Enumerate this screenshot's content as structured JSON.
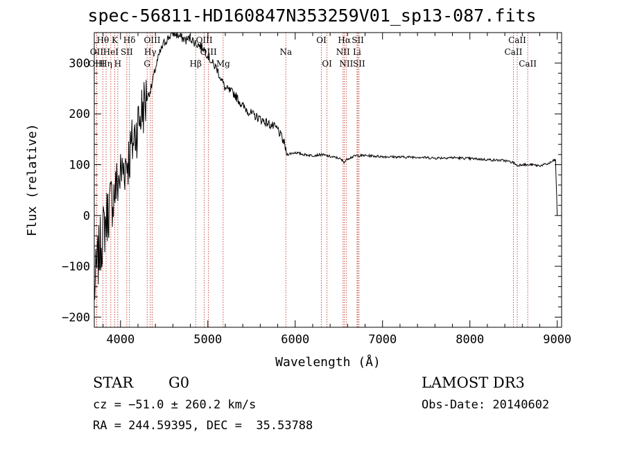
{
  "chart_data": {
    "type": "line",
    "title": "spec-56811-HD160847N353259V01_sp13-087.fits",
    "xlabel": "Wavelength (Å)",
    "ylabel": "Flux (relative)",
    "xlim": [
      3700,
      9050
    ],
    "ylim": [
      -220,
      360
    ],
    "xticks": [
      4000,
      5000,
      6000,
      7000,
      8000,
      9000
    ],
    "xtick_labels": [
      "4000",
      "5000",
      "6000",
      "7000",
      "8000",
      "9000"
    ],
    "yticks": [
      -200,
      -100,
      0,
      100,
      200,
      300
    ],
    "ytick_labels": [
      "−200",
      "−100",
      "0",
      "100",
      "200",
      "300"
    ],
    "series": [
      {
        "name": "spectrum",
        "x": [
          3700,
          3740,
          3780,
          3820,
          3860,
          3900,
          3950,
          4000,
          4050,
          4100,
          4150,
          4200,
          4250,
          4300,
          4350,
          4400,
          4450,
          4500,
          4550,
          4600,
          4650,
          4700,
          4750,
          4800,
          4850,
          4900,
          4950,
          5000,
          5050,
          5100,
          5150,
          5200,
          5300,
          5400,
          5500,
          5600,
          5700,
          5800,
          5880,
          5900,
          5950,
          6000,
          6100,
          6200,
          6300,
          6400,
          6500,
          6563,
          6600,
          6700,
          6800,
          6900,
          7000,
          7200,
          7400,
          7600,
          7800,
          8000,
          8200,
          8400,
          8500,
          8542,
          8600,
          8662,
          8700,
          8800,
          8900,
          8980,
          9000
        ],
        "y": [
          -150,
          -90,
          -50,
          -20,
          10,
          30,
          55,
          80,
          100,
          115,
          150,
          180,
          210,
          230,
          250,
          290,
          320,
          340,
          350,
          360,
          355,
          350,
          345,
          350,
          340,
          335,
          330,
          315,
          300,
          290,
          270,
          250,
          240,
          215,
          200,
          190,
          180,
          170,
          140,
          120,
          122,
          124,
          120,
          118,
          120,
          116,
          113,
          105,
          112,
          118,
          118,
          117,
          116,
          115,
          115,
          113,
          114,
          112,
          110,
          108,
          104,
          98,
          101,
          99,
          100,
          98,
          102,
          110,
          0
        ]
      }
    ],
    "lines": [
      {
        "label": "Hθ",
        "x": 3798,
        "row": 0
      },
      {
        "label": "OII",
        "x": 3727,
        "row": 1
      },
      {
        "label": "OIII",
        "x": 3727,
        "row": 2
      },
      {
        "label": "Hη",
        "x": 3835,
        "row": 2
      },
      {
        "label": "HeI",
        "x": 3889,
        "row": 1
      },
      {
        "label": "K",
        "x": 3934,
        "row": 0
      },
      {
        "label": "H",
        "x": 3969,
        "row": 2
      },
      {
        "label": "SII",
        "x": 4072,
        "row": 1
      },
      {
        "label": "Hδ",
        "x": 4102,
        "row": 0
      },
      {
        "label": "OIII",
        "x": 4363,
        "row": 0
      },
      {
        "label": "Hγ",
        "x": 4341,
        "row": 1
      },
      {
        "label": "G",
        "x": 4305,
        "row": 2
      },
      {
        "label": "Hβ",
        "x": 4861,
        "row": 2
      },
      {
        "label": "OIII",
        "x": 4959,
        "row": 0
      },
      {
        "label": "OIII",
        "x": 5007,
        "row": 1
      },
      {
        "label": "Mg",
        "x": 5175,
        "row": 2
      },
      {
        "label": "Na",
        "x": 5893,
        "row": 1
      },
      {
        "label": "OI",
        "x": 6300,
        "row": 0
      },
      {
        "label": "OI",
        "x": 6364,
        "row": 2
      },
      {
        "label": "Hα",
        "x": 6563,
        "row": 0
      },
      {
        "label": "NII",
        "x": 6548,
        "row": 1
      },
      {
        "label": "NII",
        "x": 6584,
        "row": 2
      },
      {
        "label": "SII",
        "x": 6717,
        "row": 0
      },
      {
        "label": "Li",
        "x": 6708,
        "row": 1
      },
      {
        "label": "SII",
        "x": 6731,
        "row": 2
      },
      {
        "label": "CaII",
        "x": 8542,
        "row": 0
      },
      {
        "label": "CaII",
        "x": 8498,
        "row": 1
      },
      {
        "label": "CaII",
        "x": 8662,
        "row": 2
      }
    ]
  },
  "info": {
    "object_class": "STAR",
    "subclass": "G0",
    "survey": "LAMOST DR3",
    "redshift": "cz = −51.0 ± 260.2 km/s",
    "obs_date": "Obs-Date: 20140602",
    "coords": "RA = 244.59395, DEC =  35.53788"
  }
}
